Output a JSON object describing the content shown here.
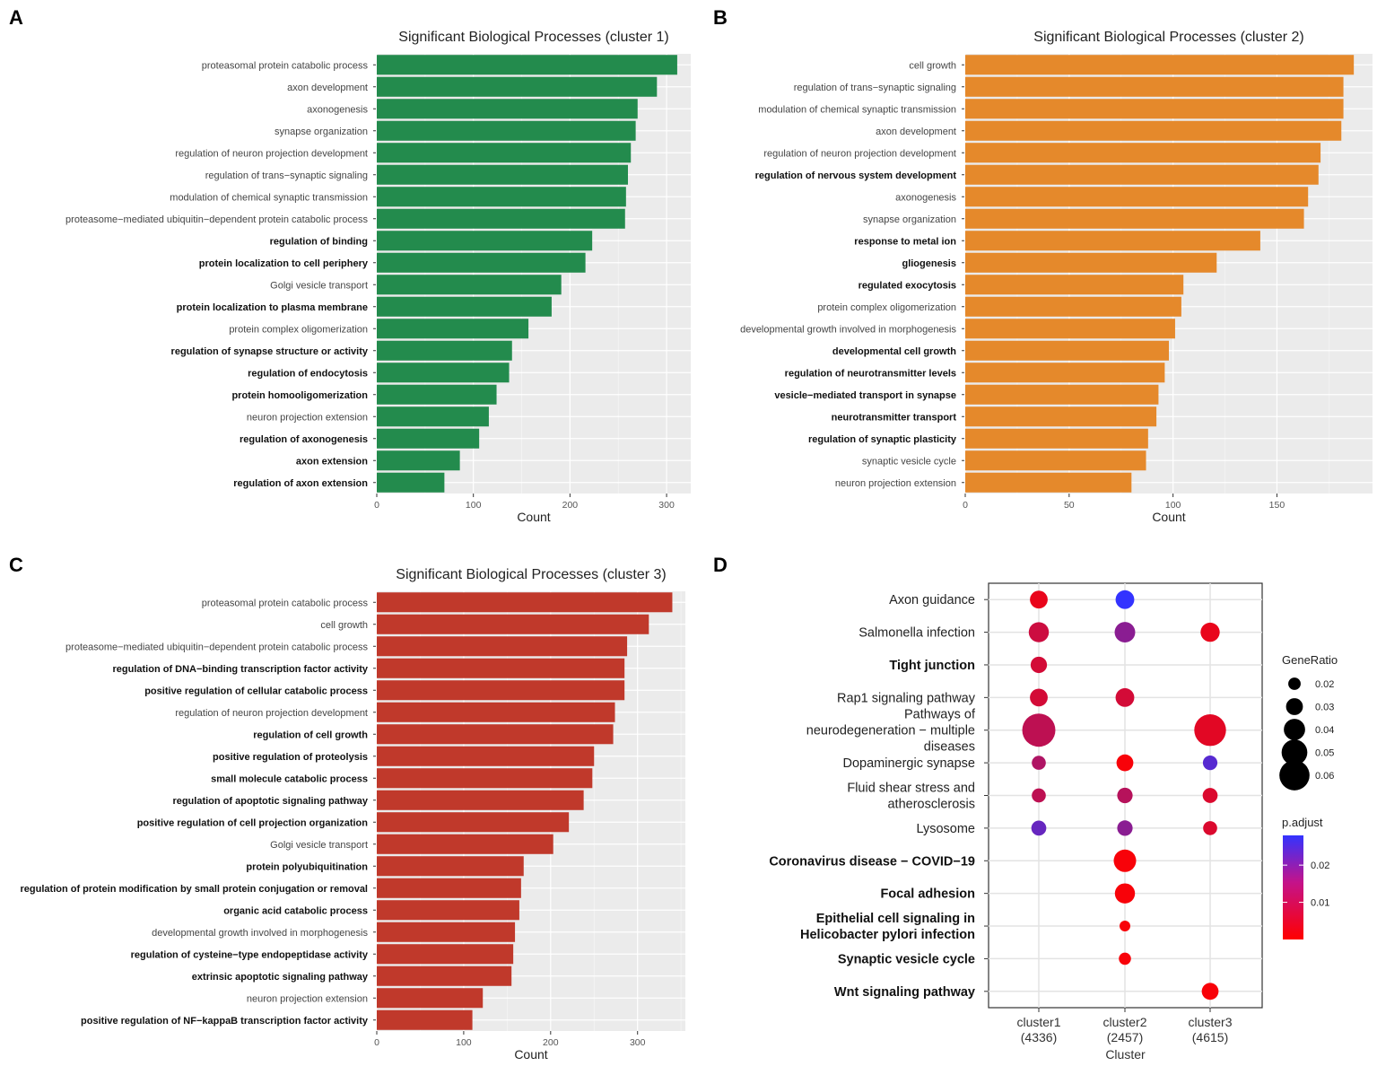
{
  "chart_data": [
    {
      "panel": "A",
      "type": "bar",
      "orientation": "horizontal",
      "title": "Significant Biological Processes (cluster 1)",
      "xlabel": "Count",
      "color": "#238b4d",
      "xlim": [
        0,
        325
      ],
      "xticks": [
        0,
        100,
        200,
        300
      ],
      "categories": [
        "proteasomal protein catabolic process",
        "axon development",
        "axonogenesis",
        "synapse organization",
        "regulation of neuron projection development",
        "regulation of trans−synaptic signaling",
        "modulation of chemical synaptic transmission",
        "proteasome−mediated ubiquitin−dependent protein catabolic process",
        "regulation of binding",
        "protein localization to cell periphery",
        "Golgi vesicle transport",
        "protein localization to plasma membrane",
        "protein complex oligomerization",
        "regulation of synapse structure or activity",
        "regulation of endocytosis",
        "protein homooligomerization",
        "neuron projection extension",
        "regulation of axonogenesis",
        "axon extension",
        "regulation of axon extension"
      ],
      "bold": [
        false,
        false,
        false,
        false,
        false,
        false,
        false,
        false,
        true,
        true,
        false,
        true,
        false,
        true,
        true,
        true,
        false,
        true,
        true,
        true
      ],
      "values": [
        311,
        290,
        270,
        268,
        263,
        260,
        258,
        257,
        223,
        216,
        191,
        181,
        157,
        140,
        137,
        124,
        116,
        106,
        86,
        70
      ]
    },
    {
      "panel": "B",
      "type": "bar",
      "orientation": "horizontal",
      "title": "Significant Biological Processes (cluster 2)",
      "xlabel": "Count",
      "color": "#e5892b",
      "xlim": [
        0,
        196
      ],
      "xticks": [
        0,
        50,
        100,
        150
      ],
      "categories": [
        "cell growth",
        "regulation of trans−synaptic signaling",
        "modulation of chemical synaptic transmission",
        "axon development",
        "regulation of neuron projection development",
        "regulation of nervous system development",
        "axonogenesis",
        "synapse organization",
        "response to metal ion",
        "gliogenesis",
        "regulated exocytosis",
        "protein complex oligomerization",
        "developmental growth involved in morphogenesis",
        "developmental cell growth",
        "regulation of neurotransmitter levels",
        "vesicle−mediated transport in synapse",
        "neurotransmitter transport",
        "regulation of synaptic plasticity",
        "synaptic vesicle cycle",
        "neuron projection extension"
      ],
      "bold": [
        false,
        false,
        false,
        false,
        false,
        true,
        false,
        false,
        true,
        true,
        true,
        false,
        false,
        true,
        true,
        true,
        true,
        true,
        false,
        false
      ],
      "values": [
        187,
        182,
        182,
        181,
        171,
        170,
        165,
        163,
        142,
        121,
        105,
        104,
        101,
        98,
        96,
        93,
        92,
        88,
        87,
        80
      ]
    },
    {
      "panel": "C",
      "type": "bar",
      "orientation": "horizontal",
      "title": "Significant Biological Processes (cluster 3)",
      "xlabel": "Count",
      "color": "#c0392b",
      "xlim": [
        0,
        355
      ],
      "xticks": [
        0,
        100,
        200,
        300
      ],
      "categories": [
        "proteasomal protein catabolic process",
        "cell growth",
        "proteasome−mediated ubiquitin−dependent protein catabolic process",
        "regulation of DNA−binding transcription factor activity",
        "positive regulation of cellular catabolic process",
        "regulation of neuron projection development",
        "regulation of cell growth",
        "positive regulation of proteolysis",
        "small molecule catabolic process",
        "regulation of apoptotic signaling pathway",
        "positive regulation of cell projection organization",
        "Golgi vesicle transport",
        "protein polyubiquitination",
        "regulation of protein modification by small protein conjugation or removal",
        "organic acid catabolic process",
        "developmental growth involved in morphogenesis",
        "regulation of cysteine−type endopeptidase activity",
        "extrinsic apoptotic signaling pathway",
        "neuron projection extension",
        "positive regulation of NF−kappaB transcription factor activity"
      ],
      "bold": [
        false,
        false,
        false,
        true,
        true,
        false,
        true,
        true,
        true,
        true,
        true,
        false,
        true,
        true,
        true,
        false,
        true,
        true,
        false,
        true
      ],
      "values": [
        340,
        313,
        288,
        285,
        285,
        274,
        272,
        250,
        248,
        238,
        221,
        203,
        169,
        166,
        164,
        159,
        157,
        155,
        122,
        110
      ]
    },
    {
      "panel": "D",
      "type": "scatter",
      "subtype": "dotplot",
      "xlabel": "Cluster",
      "clusters": [
        "cluster1\n(4336)",
        "cluster2\n(2457)",
        "cluster3\n(4615)"
      ],
      "categories": [
        "Axon guidance",
        "Salmonella infection",
        "Tight junction",
        "Rap1 signaling pathway",
        "Pathways of\nneurodegeneration − multiple\ndiseases",
        "Dopaminergic synapse",
        "Fluid shear stress and\natherosclerosis",
        "Lysosome",
        "Coronavirus disease − COVID−19",
        "Focal adhesion",
        "Epithelial cell signaling in\nHelicobacter pylori infection",
        "Synaptic vesicle cycle",
        "Wnt signaling pathway"
      ],
      "bold": [
        false,
        false,
        true,
        false,
        false,
        false,
        false,
        false,
        true,
        true,
        true,
        true,
        true
      ],
      "points": [
        {
          "term": 0,
          "cluster": 0,
          "gene_ratio": 0.03,
          "p_adjust": 0.003
        },
        {
          "term": 0,
          "cluster": 1,
          "gene_ratio": 0.032,
          "p_adjust": 0.028
        },
        {
          "term": 1,
          "cluster": 0,
          "gene_ratio": 0.035,
          "p_adjust": 0.007
        },
        {
          "term": 1,
          "cluster": 1,
          "gene_ratio": 0.036,
          "p_adjust": 0.016
        },
        {
          "term": 1,
          "cluster": 2,
          "gene_ratio": 0.033,
          "p_adjust": 0.003
        },
        {
          "term": 2,
          "cluster": 0,
          "gene_ratio": 0.027,
          "p_adjust": 0.006
        },
        {
          "term": 3,
          "cluster": 0,
          "gene_ratio": 0.03,
          "p_adjust": 0.006
        },
        {
          "term": 3,
          "cluster": 1,
          "gene_ratio": 0.032,
          "p_adjust": 0.006
        },
        {
          "term": 4,
          "cluster": 0,
          "gene_ratio": 0.063,
          "p_adjust": 0.009
        },
        {
          "term": 4,
          "cluster": 2,
          "gene_ratio": 0.06,
          "p_adjust": 0.004
        },
        {
          "term": 5,
          "cluster": 0,
          "gene_ratio": 0.022,
          "p_adjust": 0.011
        },
        {
          "term": 5,
          "cluster": 1,
          "gene_ratio": 0.028,
          "p_adjust": 0.001
        },
        {
          "term": 5,
          "cluster": 2,
          "gene_ratio": 0.023,
          "p_adjust": 0.023
        },
        {
          "term": 6,
          "cluster": 0,
          "gene_ratio": 0.022,
          "p_adjust": 0.009
        },
        {
          "term": 6,
          "cluster": 1,
          "gene_ratio": 0.025,
          "p_adjust": 0.01
        },
        {
          "term": 6,
          "cluster": 2,
          "gene_ratio": 0.024,
          "p_adjust": 0.005
        },
        {
          "term": 7,
          "cluster": 0,
          "gene_ratio": 0.024,
          "p_adjust": 0.021
        },
        {
          "term": 7,
          "cluster": 1,
          "gene_ratio": 0.025,
          "p_adjust": 0.016
        },
        {
          "term": 7,
          "cluster": 2,
          "gene_ratio": 0.022,
          "p_adjust": 0.005
        },
        {
          "term": 8,
          "cluster": 1,
          "gene_ratio": 0.04,
          "p_adjust": 0.001
        },
        {
          "term": 9,
          "cluster": 1,
          "gene_ratio": 0.035,
          "p_adjust": 0.001
        },
        {
          "term": 10,
          "cluster": 1,
          "gene_ratio": 0.015,
          "p_adjust": 0.001
        },
        {
          "term": 11,
          "cluster": 1,
          "gene_ratio": 0.018,
          "p_adjust": 0.001
        },
        {
          "term": 12,
          "cluster": 2,
          "gene_ratio": 0.028,
          "p_adjust": 0.001
        }
      ],
      "size_legend": {
        "title": "GeneRatio",
        "values": [
          0.02,
          0.03,
          0.04,
          0.05,
          0.06
        ],
        "labels": [
          "0.02",
          "0.03",
          "0.04",
          "0.05",
          "0.06"
        ]
      },
      "color_legend": {
        "title": "p.adjust",
        "low_color": "#ff0000",
        "high_color": "#3333ff",
        "range": [
          0.0,
          0.028
        ],
        "ticks": [
          0.01,
          0.02
        ],
        "tick_labels": [
          "0.01",
          "0.02"
        ]
      }
    }
  ],
  "panel_labels": [
    "A",
    "B",
    "C",
    "D"
  ]
}
